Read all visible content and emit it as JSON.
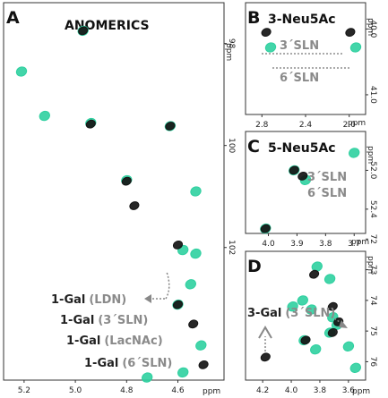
{
  "colors": {
    "black": "#151515",
    "green": "#2fd0a0",
    "grey": "#8a8a8a"
  },
  "chart_data": [
    {
      "panel": "A",
      "type": "scatter",
      "title": "ANOMERICS",
      "xlabel": "ppm",
      "ylabel": "ppm",
      "xlim": [
        5.28,
        4.42
      ],
      "ylim": [
        97.2,
        104.6
      ],
      "x_ticks": [
        "5.2",
        "5.0",
        "4.8",
        "4.6"
      ],
      "x_tick_values": [
        5.2,
        5.0,
        4.8,
        4.6
      ],
      "y_ticks": [
        "98",
        "100",
        "102"
      ],
      "y_tick_values": [
        98,
        100,
        102
      ],
      "series": [
        {
          "color": "black",
          "points": [
            [
              4.97,
              97.75
            ],
            [
              4.94,
              99.58
            ],
            [
              4.63,
              99.62
            ],
            [
              4.8,
              100.7
            ],
            [
              4.77,
              101.18
            ],
            [
              4.6,
              101.95
            ],
            [
              4.6,
              103.12
            ],
            [
              4.54,
              103.5
            ],
            [
              4.5,
              104.3
            ]
          ]
        },
        {
          "color": "green",
          "points": [
            [
              4.97,
              97.75
            ],
            [
              5.21,
              98.55
            ],
            [
              5.12,
              99.42
            ],
            [
              4.94,
              99.56
            ],
            [
              4.63,
              99.62
            ],
            [
              4.8,
              100.68
            ],
            [
              4.53,
              100.9
            ],
            [
              4.58,
              102.05
            ],
            [
              4.53,
              102.12
            ],
            [
              4.55,
              102.72
            ],
            [
              4.6,
              103.12
            ],
            [
              4.51,
              103.92
            ],
            [
              4.58,
              104.45
            ],
            [
              4.72,
              104.55
            ]
          ]
        }
      ],
      "annotations": [
        {
          "prefix": "1-Gal",
          "label": "(LDN)"
        },
        {
          "prefix": "1-Gal",
          "label": "(3´SLN)"
        },
        {
          "prefix": "1-Gal",
          "label": "(LacNAc)"
        },
        {
          "prefix": "1-Gal",
          "label": "(6´SLN)"
        }
      ]
    },
    {
      "panel": "B",
      "type": "scatter",
      "title": "3-Neu5Ac",
      "xlabel": "ppm",
      "ylabel": "ppm",
      "xlim": [
        2.95,
        1.85
      ],
      "ylim": [
        39.6,
        41.3
      ],
      "x_ticks": [
        "2.8",
        "2.4",
        "2.0"
      ],
      "x_tick_values": [
        2.8,
        2.4,
        2.0
      ],
      "y_ticks": [
        "40.0",
        "41.0"
      ],
      "y_tick_values": [
        40.0,
        41.0
      ],
      "series": [
        {
          "color": "black",
          "points": [
            [
              2.76,
              40.05
            ],
            [
              1.99,
              40.05
            ]
          ]
        },
        {
          "color": "green",
          "points": [
            [
              2.72,
              40.28
            ],
            [
              1.94,
              40.28
            ]
          ]
        }
      ],
      "annotations": [
        {
          "label": "3´SLN"
        },
        {
          "label": "6´SLN"
        }
      ]
    },
    {
      "panel": "C",
      "type": "scatter",
      "title": "5-Neu5Ac",
      "xlabel": "ppm",
      "ylabel": "ppm",
      "xlim": [
        4.08,
        3.66
      ],
      "ylim": [
        51.6,
        52.65
      ],
      "x_ticks": [
        "4.0",
        "3.9",
        "3.8",
        "3.7"
      ],
      "x_tick_values": [
        4.0,
        3.9,
        3.8,
        3.7
      ],
      "y_ticks": [
        "52.0",
        "52.4"
      ],
      "y_tick_values": [
        52.0,
        52.4
      ],
      "series": [
        {
          "color": "black",
          "points": [
            [
              3.91,
              52.0
            ],
            [
              3.88,
              52.06
            ],
            [
              4.01,
              52.6
            ]
          ]
        },
        {
          "color": "green",
          "points": [
            [
              3.91,
              52.0
            ],
            [
              3.87,
              52.1
            ],
            [
              4.01,
              52.6
            ],
            [
              3.7,
              51.82
            ]
          ]
        }
      ],
      "annotations": [
        {
          "label": "3´SLN"
        },
        {
          "label": "6´SLN"
        }
      ]
    },
    {
      "panel": "D",
      "type": "scatter",
      "title": "",
      "xlabel": "ppm",
      "ylabel": "ppm",
      "xlim": [
        4.32,
        3.48
      ],
      "ylim": [
        72.4,
        76.6
      ],
      "x_ticks": [
        "4.2",
        "4.0",
        "3.8",
        "3.6"
      ],
      "x_tick_values": [
        4.2,
        4.0,
        3.8,
        3.6
      ],
      "y_ticks": [
        "72",
        "73",
        "74",
        "75",
        "76"
      ],
      "y_tick_values": [
        72,
        73,
        74,
        75,
        76
      ],
      "series": [
        {
          "color": "black",
          "points": [
            [
              3.84,
              73.15
            ],
            [
              3.71,
              74.2
            ],
            [
              3.67,
              74.7
            ],
            [
              3.71,
              75.05
            ],
            [
              3.9,
              75.3
            ],
            [
              4.18,
              75.85
            ]
          ]
        },
        {
          "color": "green",
          "points": [
            [
              3.82,
              72.9
            ],
            [
              3.73,
              73.3
            ],
            [
              3.92,
              74.0
            ],
            [
              3.99,
              74.2
            ],
            [
              3.86,
              74.3
            ],
            [
              3.71,
              74.55
            ],
            [
              3.68,
              74.8
            ],
            [
              3.73,
              75.05
            ],
            [
              3.91,
              75.3
            ],
            [
              3.83,
              75.6
            ],
            [
              3.6,
              75.5
            ],
            [
              3.55,
              76.2
            ]
          ]
        }
      ],
      "annotations": [
        {
          "prefix": "3-Gal",
          "label": "(3´SLN)"
        }
      ]
    }
  ]
}
